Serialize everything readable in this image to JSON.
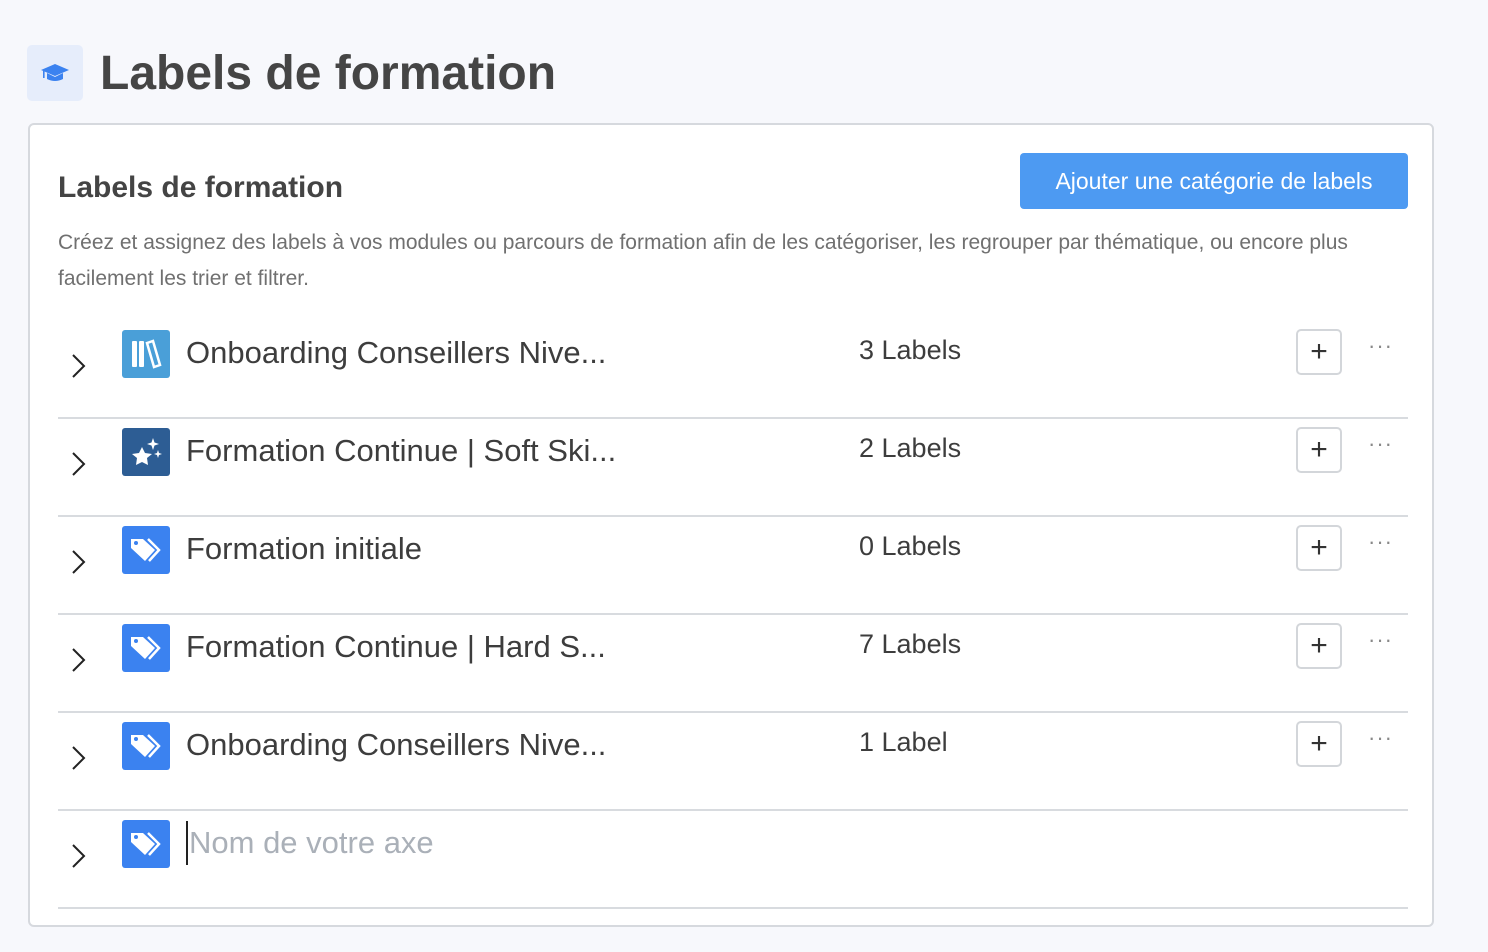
{
  "page": {
    "title": "Labels de formation",
    "icon": "graduation-cap-icon"
  },
  "card": {
    "title": "Labels de formation",
    "add_button": "Ajouter une catégorie de labels",
    "description": "Créez et assignez des labels à vos modules ou parcours de formation afin de les catégoriser, les regrouper par thématique, ou encore plus facilement les trier et filtrer."
  },
  "categories": [
    {
      "name": "Onboarding Conseillers Nive...",
      "count": "3 Labels",
      "icon": "books-icon",
      "color": "#4a9fd8"
    },
    {
      "name": "Formation Continue | Soft Ski...",
      "count": "2 Labels",
      "icon": "stars-icon",
      "color": "#2d5d94"
    },
    {
      "name": "Formation initiale",
      "count": "0 Labels",
      "icon": "tags-icon",
      "color": "#3b82f0"
    },
    {
      "name": "Formation Continue | Hard S...",
      "count": "7 Labels",
      "icon": "tags-icon",
      "color": "#3b82f0"
    },
    {
      "name": "Onboarding Conseillers Nive...",
      "count": "1 Label",
      "icon": "tags-icon",
      "color": "#3b82f0"
    }
  ],
  "new_category": {
    "placeholder": "Nom de votre axe",
    "value": "",
    "icon": "tags-icon"
  },
  "actions": {
    "plus": "+",
    "more": "···"
  }
}
